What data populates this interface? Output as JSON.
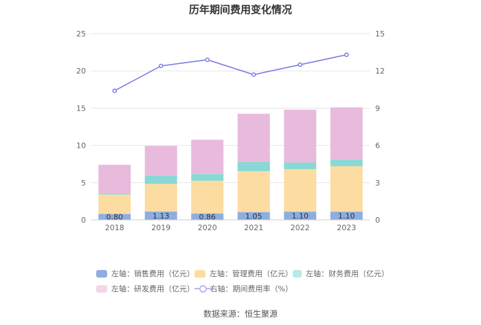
{
  "chart_data": {
    "type": "bar",
    "stacked": true,
    "title": "历年期间费用变化情况",
    "categories": [
      "2018",
      "2019",
      "2020",
      "2021",
      "2022",
      "2023"
    ],
    "y_left": {
      "min": 0,
      "max": 25,
      "ticks": [
        "0",
        "5",
        "10",
        "15",
        "20",
        "25"
      ]
    },
    "y_right": {
      "min": 0,
      "max": 15,
      "ticks": [
        "0",
        "3",
        "6",
        "9",
        "12",
        "15"
      ]
    },
    "grid": true,
    "legend_position": "bottom",
    "series": [
      {
        "name": "左轴：销售费用（亿元）",
        "axis": "left",
        "color": "#8eaee0",
        "values": [
          0.8,
          1.13,
          0.86,
          1.05,
          1.1,
          1.1
        ],
        "labels": [
          "0.80",
          "1.13",
          "0.86",
          "1.05",
          "1.10",
          "1.10"
        ]
      },
      {
        "name": "左轴：管理费用（亿元）",
        "axis": "left",
        "color": "#fddca2",
        "values": [
          2.6,
          3.7,
          4.4,
          5.5,
          5.7,
          6.1
        ]
      },
      {
        "name": "左轴：财务费用（亿元）",
        "axis": "left",
        "color": "#89d8d5",
        "values": [
          0.1,
          1.1,
          0.9,
          1.2,
          0.9,
          0.9
        ]
      },
      {
        "name": "左轴：研发费用（亿元）",
        "axis": "left",
        "color": "#e8bbdc",
        "values": [
          3.9,
          4.0,
          4.6,
          6.5,
          7.1,
          7.0
        ]
      },
      {
        "name": "右轴：期间费用率（%）",
        "axis": "right",
        "type": "line",
        "color": "#7b7be8",
        "values": [
          10.4,
          12.4,
          12.9,
          11.7,
          12.5,
          13.3
        ]
      }
    ]
  },
  "source": "数据来源：恒生聚源"
}
